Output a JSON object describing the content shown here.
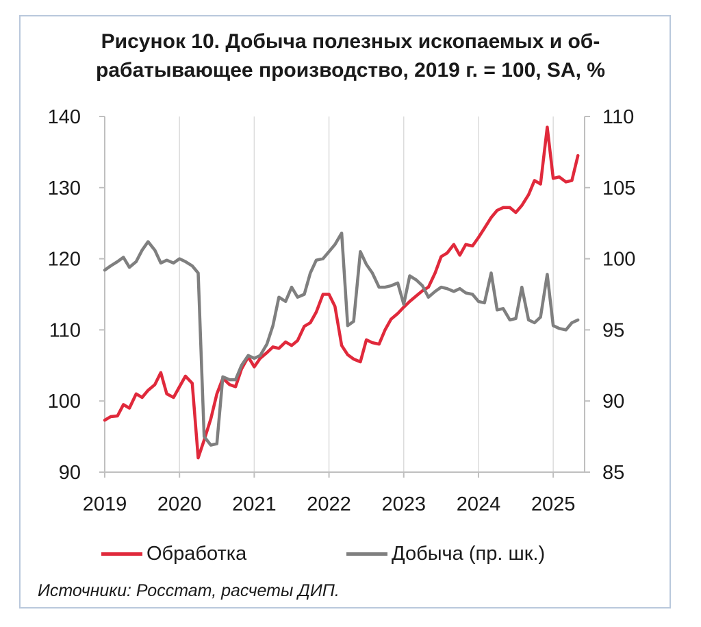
{
  "title": {
    "line1": "Рисунок 10. Добыча полезных ископаемых и об-",
    "line2": "рабатывающее производство, 2019 г. = 100, SA, %"
  },
  "source": "Источники: Росстат, расчеты ДИП.",
  "colors": {
    "manufacturing": "#e0293b",
    "mining": "#7f7f7f",
    "frame": "#b9c8dc"
  },
  "chart_data": {
    "type": "line",
    "title": "Рисунок 10. Добыча полезных ископаемых и обрабатывающее производство, 2019 г. = 100, SA, %",
    "x_ticks": [
      "2019",
      "2020",
      "2021",
      "2022",
      "2023",
      "2024",
      "2025"
    ],
    "xlim": [
      2019.0,
      2025.42
    ],
    "y_left": {
      "ticks": [
        "90",
        "100",
        "110",
        "120",
        "130",
        "140"
      ],
      "ylim": [
        90,
        140
      ]
    },
    "y_right": {
      "ticks": [
        "85",
        "90",
        "95",
        "100",
        "105",
        "110"
      ],
      "ylim": [
        85,
        110
      ]
    },
    "grid": "vertical",
    "legend_position": "bottom",
    "series": [
      {
        "name": "Обработка",
        "axis": "left",
        "color": "#e0293b",
        "points": [
          [
            2019.0,
            97.3
          ],
          [
            2019.08,
            97.8
          ],
          [
            2019.17,
            97.9
          ],
          [
            2019.25,
            99.5
          ],
          [
            2019.33,
            99.0
          ],
          [
            2019.42,
            101.0
          ],
          [
            2019.5,
            100.5
          ],
          [
            2019.58,
            101.5
          ],
          [
            2019.67,
            102.3
          ],
          [
            2019.75,
            104.0
          ],
          [
            2019.83,
            101.0
          ],
          [
            2019.92,
            100.5
          ],
          [
            2020.0,
            102.0
          ],
          [
            2020.08,
            103.5
          ],
          [
            2020.17,
            102.5
          ],
          [
            2020.25,
            92.0
          ],
          [
            2020.33,
            94.5
          ],
          [
            2020.42,
            97.5
          ],
          [
            2020.5,
            101.0
          ],
          [
            2020.58,
            103.2
          ],
          [
            2020.67,
            102.3
          ],
          [
            2020.75,
            102.0
          ],
          [
            2020.83,
            104.5
          ],
          [
            2020.92,
            106.2
          ],
          [
            2021.0,
            104.8
          ],
          [
            2021.08,
            106.0
          ],
          [
            2021.17,
            106.8
          ],
          [
            2021.25,
            107.6
          ],
          [
            2021.33,
            107.4
          ],
          [
            2021.42,
            108.3
          ],
          [
            2021.5,
            107.8
          ],
          [
            2021.58,
            108.5
          ],
          [
            2021.67,
            110.5
          ],
          [
            2021.75,
            111.0
          ],
          [
            2021.83,
            112.5
          ],
          [
            2021.92,
            115.0
          ],
          [
            2022.0,
            115.0
          ],
          [
            2022.08,
            113.3
          ],
          [
            2022.17,
            107.8
          ],
          [
            2022.25,
            106.5
          ],
          [
            2022.33,
            105.9
          ],
          [
            2022.42,
            105.5
          ],
          [
            2022.5,
            108.6
          ],
          [
            2022.58,
            108.2
          ],
          [
            2022.67,
            108.0
          ],
          [
            2022.75,
            110.0
          ],
          [
            2022.83,
            111.5
          ],
          [
            2022.92,
            112.3
          ],
          [
            2023.0,
            113.2
          ],
          [
            2023.08,
            114.0
          ],
          [
            2023.17,
            114.8
          ],
          [
            2023.25,
            115.5
          ],
          [
            2023.33,
            116.0
          ],
          [
            2023.42,
            118.0
          ],
          [
            2023.5,
            120.3
          ],
          [
            2023.58,
            120.8
          ],
          [
            2023.67,
            122.0
          ],
          [
            2023.75,
            120.5
          ],
          [
            2023.83,
            122.0
          ],
          [
            2023.92,
            121.8
          ],
          [
            2024.0,
            123.0
          ],
          [
            2024.08,
            124.3
          ],
          [
            2024.17,
            125.8
          ],
          [
            2024.25,
            126.8
          ],
          [
            2024.33,
            127.2
          ],
          [
            2024.42,
            127.2
          ],
          [
            2024.5,
            126.5
          ],
          [
            2024.58,
            127.5
          ],
          [
            2024.67,
            129.0
          ],
          [
            2024.75,
            131.0
          ],
          [
            2024.83,
            130.5
          ],
          [
            2024.92,
            138.5
          ],
          [
            2025.0,
            131.3
          ],
          [
            2025.08,
            131.5
          ],
          [
            2025.17,
            130.8
          ],
          [
            2025.25,
            131.0
          ],
          [
            2025.33,
            134.5
          ]
        ]
      },
      {
        "name": "Добыча (пр. шк.)",
        "axis": "right",
        "color": "#7f7f7f",
        "points": [
          [
            2019.0,
            99.2
          ],
          [
            2019.08,
            99.5
          ],
          [
            2019.17,
            99.8
          ],
          [
            2019.25,
            100.1
          ],
          [
            2019.33,
            99.4
          ],
          [
            2019.42,
            99.8
          ],
          [
            2019.5,
            100.6
          ],
          [
            2019.58,
            101.2
          ],
          [
            2019.67,
            100.6
          ],
          [
            2019.75,
            99.7
          ],
          [
            2019.83,
            99.9
          ],
          [
            2019.92,
            99.7
          ],
          [
            2020.0,
            100.0
          ],
          [
            2020.08,
            99.8
          ],
          [
            2020.17,
            99.5
          ],
          [
            2020.25,
            99.0
          ],
          [
            2020.33,
            87.5
          ],
          [
            2020.42,
            86.9
          ],
          [
            2020.5,
            87.0
          ],
          [
            2020.58,
            91.7
          ],
          [
            2020.67,
            91.5
          ],
          [
            2020.75,
            91.5
          ],
          [
            2020.83,
            92.5
          ],
          [
            2020.92,
            93.2
          ],
          [
            2021.0,
            93.0
          ],
          [
            2021.08,
            93.2
          ],
          [
            2021.17,
            94.0
          ],
          [
            2021.25,
            95.3
          ],
          [
            2021.33,
            97.3
          ],
          [
            2021.42,
            97.0
          ],
          [
            2021.5,
            98.0
          ],
          [
            2021.58,
            97.3
          ],
          [
            2021.67,
            97.5
          ],
          [
            2021.75,
            99.0
          ],
          [
            2021.83,
            99.9
          ],
          [
            2021.92,
            100.0
          ],
          [
            2022.0,
            100.5
          ],
          [
            2022.08,
            101.0
          ],
          [
            2022.17,
            101.8
          ],
          [
            2022.25,
            95.3
          ],
          [
            2022.33,
            95.6
          ],
          [
            2022.42,
            100.5
          ],
          [
            2022.5,
            99.6
          ],
          [
            2022.58,
            99.0
          ],
          [
            2022.67,
            98.0
          ],
          [
            2022.75,
            98.0
          ],
          [
            2022.83,
            98.1
          ],
          [
            2022.92,
            98.3
          ],
          [
            2023.0,
            96.8
          ],
          [
            2023.08,
            98.8
          ],
          [
            2023.17,
            98.5
          ],
          [
            2023.25,
            98.1
          ],
          [
            2023.33,
            97.3
          ],
          [
            2023.42,
            97.7
          ],
          [
            2023.5,
            98.0
          ],
          [
            2023.58,
            97.9
          ],
          [
            2023.67,
            97.7
          ],
          [
            2023.75,
            97.9
          ],
          [
            2023.83,
            97.6
          ],
          [
            2023.92,
            97.5
          ],
          [
            2024.0,
            97.0
          ],
          [
            2024.08,
            96.9
          ],
          [
            2024.17,
            99.0
          ],
          [
            2024.25,
            96.4
          ],
          [
            2024.33,
            96.5
          ],
          [
            2024.42,
            95.7
          ],
          [
            2024.5,
            95.8
          ],
          [
            2024.58,
            98.0
          ],
          [
            2024.67,
            95.7
          ],
          [
            2024.75,
            95.5
          ],
          [
            2024.83,
            95.9
          ],
          [
            2024.92,
            98.9
          ],
          [
            2025.0,
            95.3
          ],
          [
            2025.08,
            95.1
          ],
          [
            2025.17,
            95.0
          ],
          [
            2025.25,
            95.5
          ],
          [
            2025.33,
            95.7
          ]
        ]
      }
    ]
  }
}
